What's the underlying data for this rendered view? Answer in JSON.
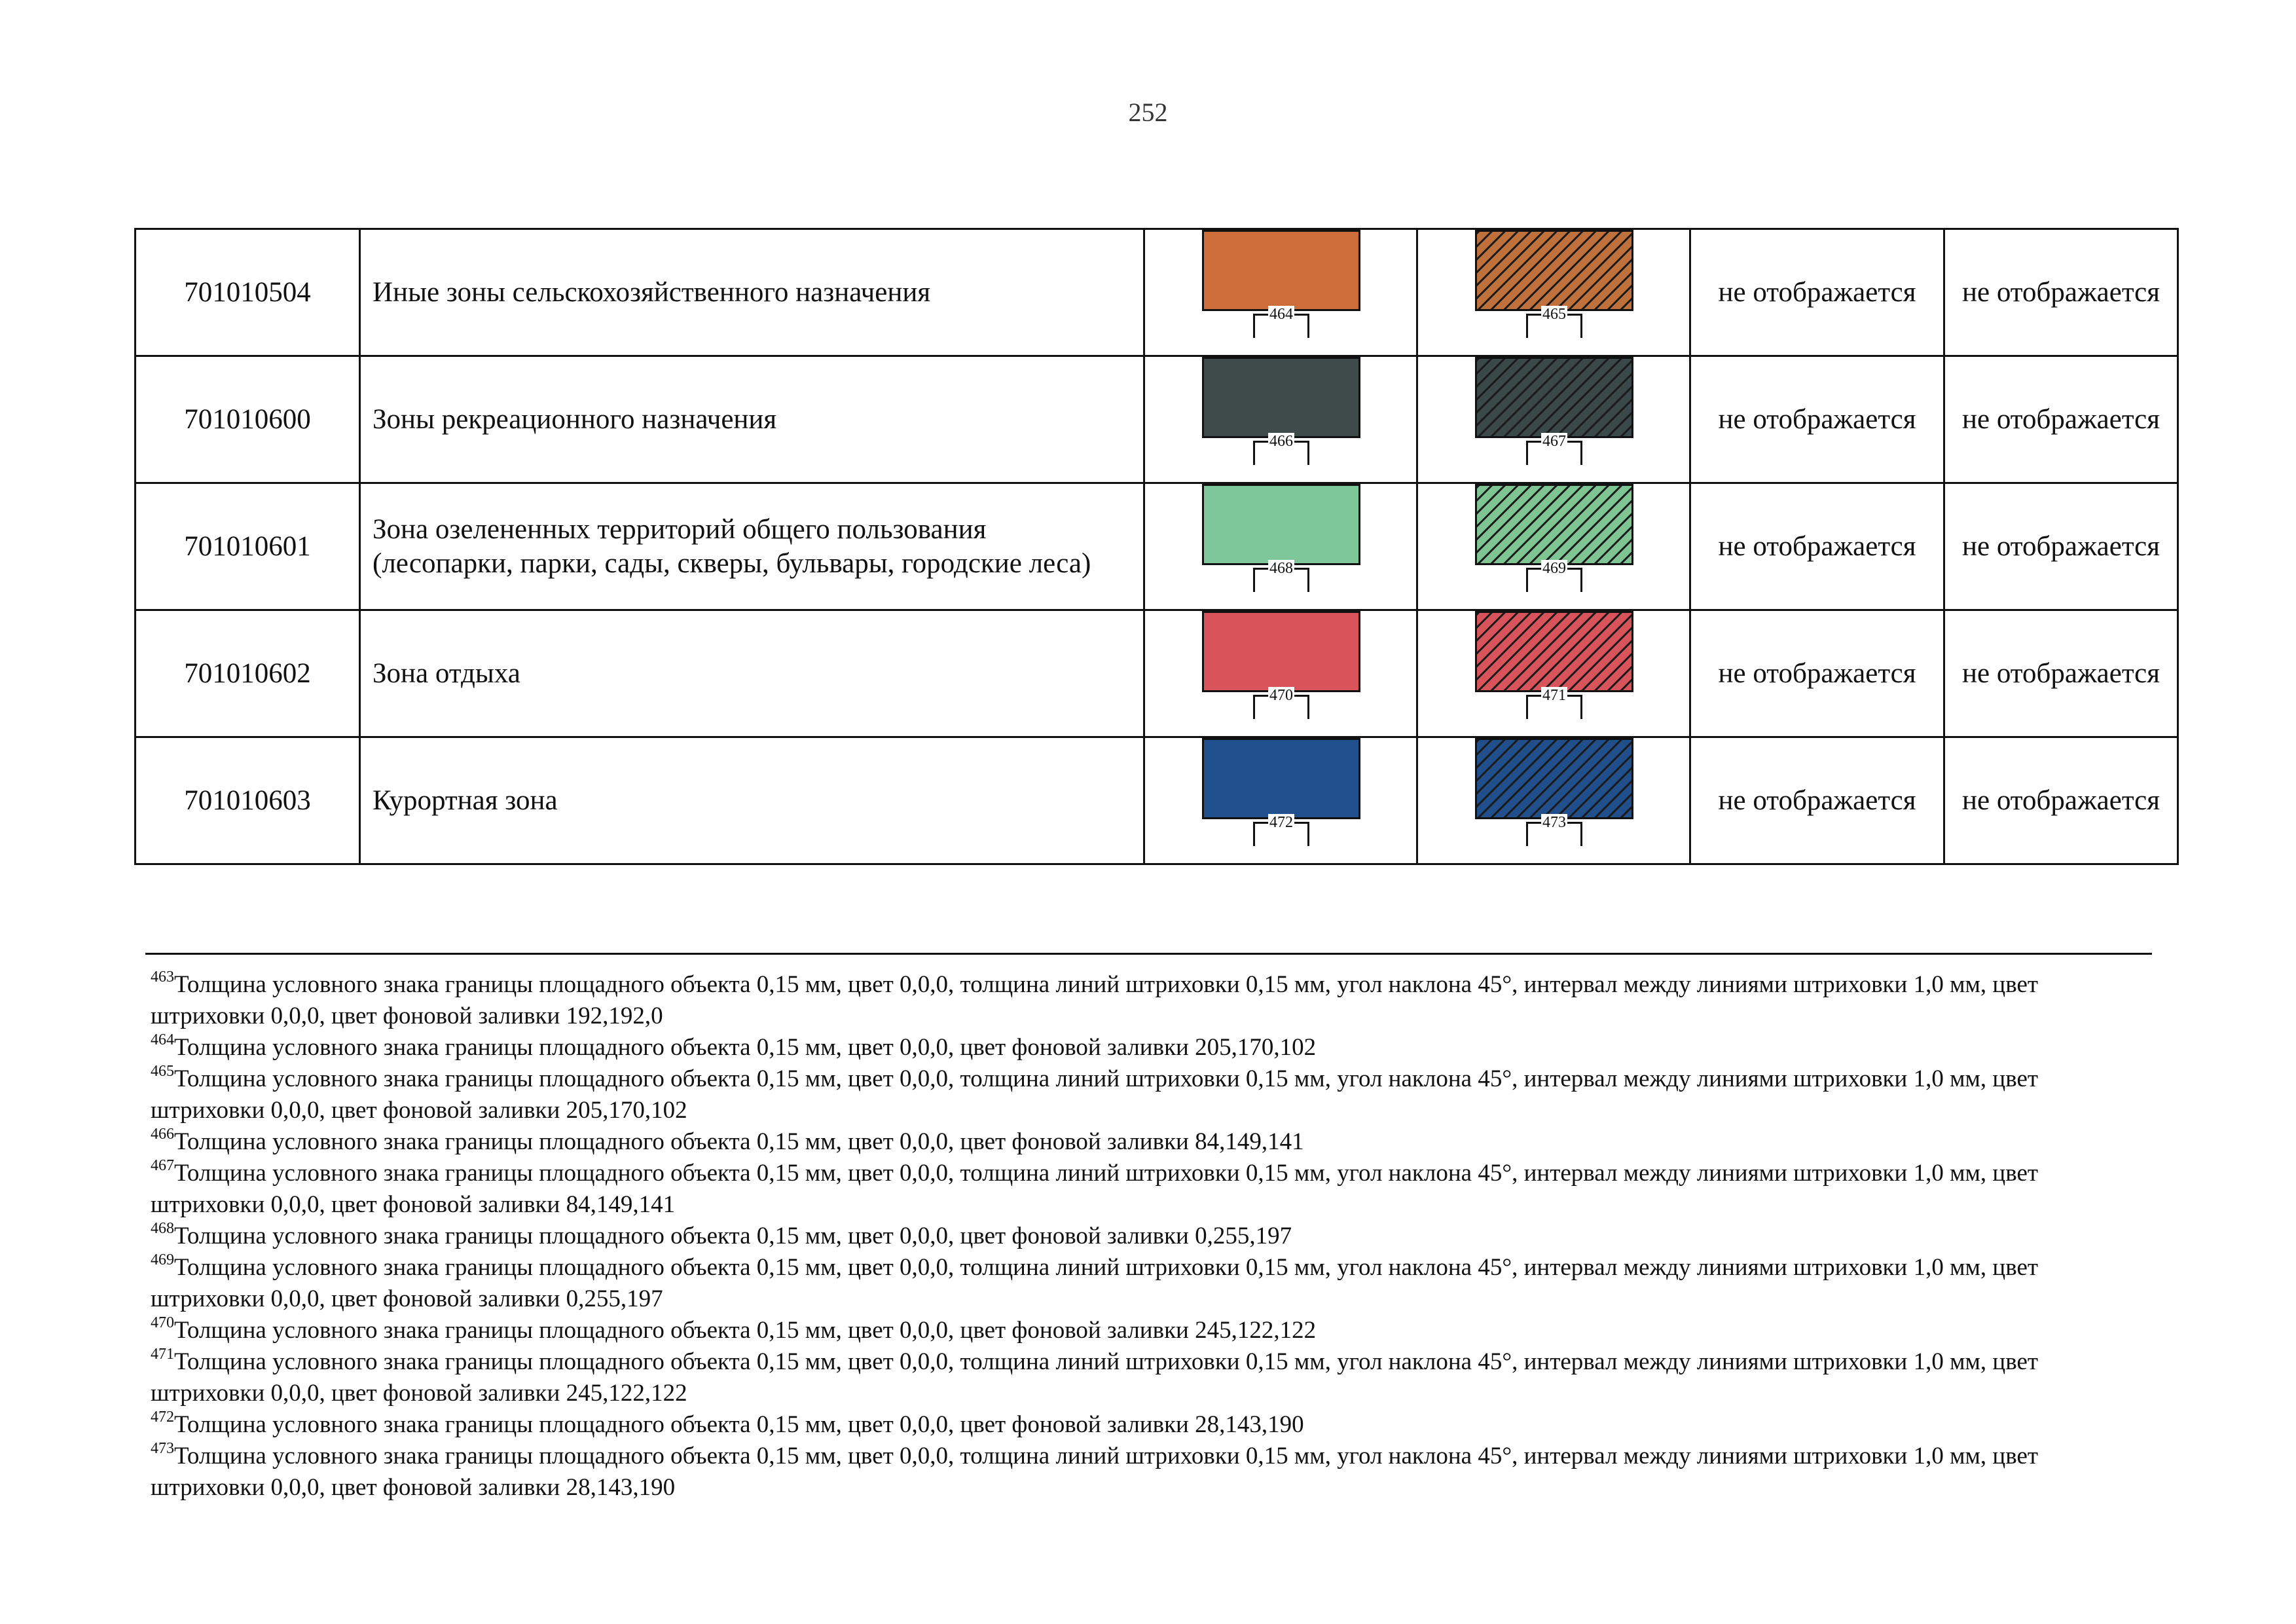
{
  "page_number": "252",
  "not_displayed_label": "не отображается",
  "rows": [
    {
      "code": "701010504",
      "name": "Иные зоны сельскохозяйственного назначения",
      "fill_ref": "464",
      "hatch_ref": "465",
      "color": "#cd6e3a",
      "hatch_color": "#c0703a"
    },
    {
      "code": "701010600",
      "name": "Зоны рекреационного назначения",
      "fill_ref": "466",
      "hatch_ref": "467",
      "color": "#3f4a4a",
      "hatch_color": "#3b4849"
    },
    {
      "code": "701010601",
      "name": "Зона озелененных территорий общего пользования (лесопарки, парки, сады, скверы, бульвары, городские леса)",
      "fill_ref": "468",
      "hatch_ref": "469",
      "color": "#7dc79a",
      "hatch_color": "#7fc493"
    },
    {
      "code": "701010602",
      "name": "Зона отдыха",
      "fill_ref": "470",
      "hatch_ref": "471",
      "color": "#d9545a",
      "hatch_color": "#d9545a"
    },
    {
      "code": "701010603",
      "name": "Курортная зона",
      "fill_ref": "472",
      "hatch_ref": "473",
      "color": "#20508e",
      "hatch_color": "#204f8c"
    }
  ],
  "footnotes": [
    {
      "num": "463",
      "text": "Толщина условного знака границы площадного объекта 0,15 мм, цвет 0,0,0, толщина линий штриховки 0,15 мм, угол наклона 45°, интервал между линиями штриховки 1,0 мм, цвет штриховки 0,0,0, цвет фоновой заливки 192,192,0"
    },
    {
      "num": "464",
      "text": "Толщина условного знака границы площадного объекта 0,15 мм, цвет 0,0,0, цвет фоновой заливки 205,170,102"
    },
    {
      "num": "465",
      "text": "Толщина условного знака границы площадного объекта 0,15 мм, цвет 0,0,0, толщина линий штриховки 0,15 мм, угол наклона 45°, интервал между линиями штриховки 1,0 мм, цвет штриховки 0,0,0, цвет фоновой заливки 205,170,102"
    },
    {
      "num": "466",
      "text": "Толщина условного знака границы площадного объекта 0,15 мм, цвет 0,0,0, цвет фоновой заливки 84,149,141"
    },
    {
      "num": "467",
      "text": "Толщина условного знака границы площадного объекта 0,15 мм, цвет 0,0,0, толщина линий штриховки 0,15 мм, угол наклона 45°, интервал между линиями штриховки 1,0 мм, цвет штриховки 0,0,0, цвет фоновой заливки 84,149,141"
    },
    {
      "num": "468",
      "text": "Толщина условного знака границы площадного объекта 0,15 мм, цвет 0,0,0, цвет фоновой заливки 0,255,197"
    },
    {
      "num": "469",
      "text": "Толщина условного знака границы площадного объекта 0,15 мм, цвет 0,0,0, толщина линий штриховки 0,15 мм, угол наклона 45°, интервал между линиями штриховки 1,0 мм, цвет штриховки 0,0,0, цвет фоновой заливки 0,255,197"
    },
    {
      "num": "470",
      "text": "Толщина условного знака границы площадного объекта 0,15 мм, цвет 0,0,0, цвет фоновой заливки 245,122,122"
    },
    {
      "num": "471",
      "text": "Толщина условного знака границы площадного объекта 0,15 мм, цвет 0,0,0, толщина линий штриховки 0,15 мм, угол наклона 45°, интервал между линиями штриховки 1,0 мм, цвет штриховки 0,0,0, цвет фоновой заливки 245,122,122"
    },
    {
      "num": "472",
      "text": "Толщина условного знака границы площадного объекта 0,15 мм, цвет 0,0,0, цвет фоновой заливки 28,143,190"
    },
    {
      "num": "473",
      "text": "Толщина условного знака границы площадного объекта 0,15 мм, цвет 0,0,0, толщина линий штриховки 0,15 мм, угол наклона 45°, интервал между линиями штриховки 1,0 мм, цвет штриховки 0,0,0, цвет фоновой заливки 28,143,190"
    }
  ]
}
